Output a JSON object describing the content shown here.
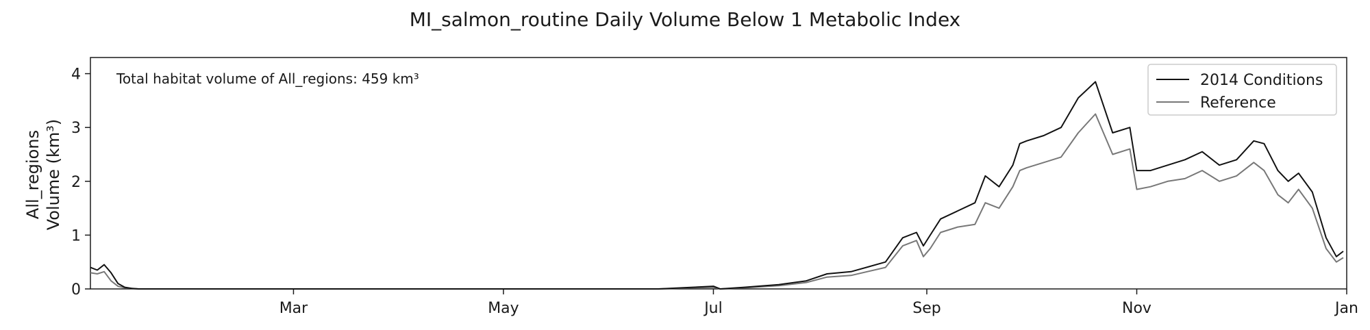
{
  "chart_data": {
    "type": "line",
    "title": "MI_salmon_routine Daily Volume Below 1 Metabolic Index",
    "xlabel": "",
    "ylabel_lines": [
      "All_regions",
      "Volume (km³)"
    ],
    "annotation": "Total habitat volume of All_regions: 459 km³",
    "xlim": [
      "Jan 1",
      "Jan 1 (next year)"
    ],
    "ylim": [
      0,
      4.3
    ],
    "x_ticks": [
      "Mar",
      "May",
      "Jul",
      "Sep",
      "Nov",
      "Jan"
    ],
    "y_ticks": [
      "0",
      "1",
      "2",
      "3",
      "4"
    ],
    "grid": false,
    "legend_position": "top-right",
    "colors": {
      "2014 Conditions": "#111111",
      "Reference": "#777777"
    },
    "x": [
      "Jan 1",
      "Jan 3",
      "Jan 5",
      "Jan 7",
      "Jan 9",
      "Jan 11",
      "Jan 13",
      "Jan 15",
      "Feb 1",
      "Mar 1",
      "Apr 1",
      "May 1",
      "Jun 1",
      "Jun 15",
      "Jun 25",
      "Jul 1",
      "Jul 3",
      "Jul 10",
      "Jul 20",
      "Jul 28",
      "Aug 3",
      "Aug 10",
      "Aug 20",
      "Aug 25",
      "Aug 29",
      "Aug 31",
      "Sep 2",
      "Sep 5",
      "Sep 10",
      "Sep 15",
      "Sep 18",
      "Sep 22",
      "Sep 26",
      "Sep 28",
      "Sep 30",
      "Oct 5",
      "Oct 10",
      "Oct 15",
      "Oct 20",
      "Oct 25",
      "Oct 30",
      "Nov 1",
      "Nov 5",
      "Nov 10",
      "Nov 15",
      "Nov 20",
      "Nov 25",
      "Nov 30",
      "Dec 5",
      "Dec 8",
      "Dec 12",
      "Dec 15",
      "Dec 18",
      "Dec 22",
      "Dec 26",
      "Dec 29",
      "Dec 31"
    ],
    "series": [
      {
        "name": "2014 Conditions",
        "values": [
          0.4,
          0.35,
          0.45,
          0.3,
          0.1,
          0.03,
          0.01,
          0.0,
          0.0,
          0.0,
          0.0,
          0.0,
          0.0,
          0.0,
          0.03,
          0.05,
          0.0,
          0.03,
          0.08,
          0.15,
          0.28,
          0.32,
          0.5,
          0.95,
          1.05,
          0.8,
          1.0,
          1.3,
          1.45,
          1.6,
          2.1,
          1.9,
          2.3,
          2.7,
          2.75,
          2.85,
          3.0,
          3.55,
          3.85,
          2.9,
          3.0,
          2.2,
          2.2,
          2.3,
          2.4,
          2.55,
          2.3,
          2.4,
          2.75,
          2.7,
          2.2,
          2.0,
          2.15,
          1.8,
          0.95,
          0.6,
          0.7
        ]
      },
      {
        "name": "Reference",
        "values": [
          0.3,
          0.28,
          0.32,
          0.15,
          0.05,
          0.02,
          0.01,
          0.0,
          0.0,
          0.0,
          0.0,
          0.0,
          0.0,
          0.0,
          0.02,
          0.03,
          0.0,
          0.02,
          0.06,
          0.12,
          0.22,
          0.25,
          0.4,
          0.8,
          0.9,
          0.6,
          0.75,
          1.05,
          1.15,
          1.2,
          1.6,
          1.5,
          1.9,
          2.2,
          2.25,
          2.35,
          2.45,
          2.9,
          3.25,
          2.5,
          2.6,
          1.85,
          1.9,
          2.0,
          2.05,
          2.2,
          2.0,
          2.1,
          2.35,
          2.2,
          1.75,
          1.6,
          1.85,
          1.5,
          0.75,
          0.5,
          0.58
        ]
      }
    ]
  }
}
